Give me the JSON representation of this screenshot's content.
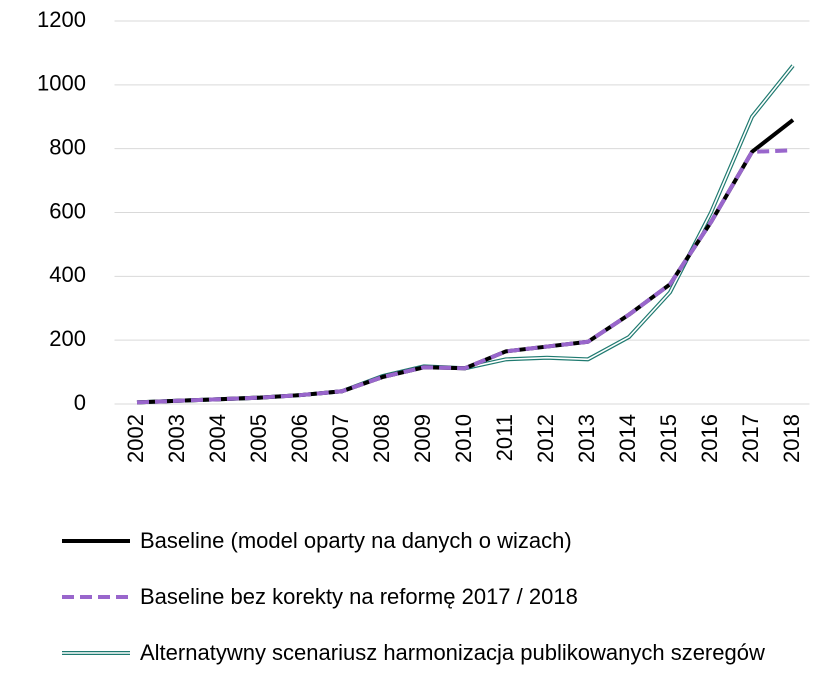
{
  "chart_data": {
    "type": "line",
    "categories": [
      "2002",
      "2003",
      "2004",
      "2005",
      "2006",
      "2007",
      "2008",
      "2009",
      "2010",
      "2011",
      "2012",
      "2013",
      "2014",
      "2015",
      "2016",
      "2017",
      "2018"
    ],
    "series": [
      {
        "name": "Alternatywny scenariusz harmonizacja publikowanych szeregów",
        "color": "#1f7a70",
        "line_style": "double",
        "values": [
          5,
          10,
          15,
          20,
          28,
          40,
          88,
          118,
          112,
          140,
          145,
          140,
          210,
          350,
          600,
          900,
          1060
        ]
      },
      {
        "name": "Baseline (model oparty na danych o wizach)",
        "color": "#000000",
        "line_style": "solid",
        "values": [
          5,
          10,
          15,
          20,
          28,
          40,
          85,
          115,
          112,
          165,
          180,
          195,
          280,
          375,
          570,
          790,
          890
        ]
      },
      {
        "name": "Baseline bez korekty na reformę 2017 / 2018",
        "color": "#9966cc",
        "line_style": "dashed",
        "values": [
          5,
          10,
          15,
          20,
          28,
          40,
          85,
          115,
          112,
          165,
          180,
          195,
          280,
          375,
          570,
          790,
          795
        ]
      }
    ],
    "legend_order": [
      1,
      2,
      0
    ],
    "ylim": [
      0,
      1200
    ],
    "yticks": [
      0,
      200,
      400,
      600,
      800,
      1000,
      1200
    ],
    "grid": true
  }
}
